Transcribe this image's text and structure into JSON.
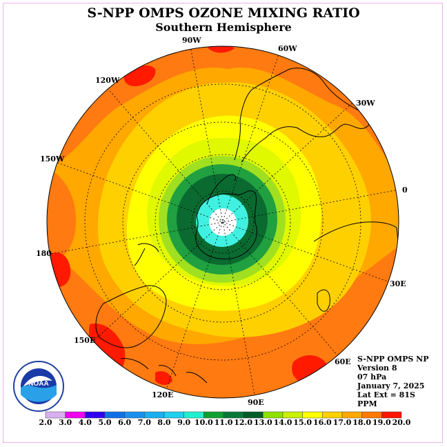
{
  "title": "S-NPP OMPS OZONE MIXING RATIO",
  "subtitle": "Southern Hemisphere",
  "longitude_labels": {
    "w90": "90W",
    "w60": "60W",
    "w30": "30W",
    "e0": "0",
    "e30": "30E",
    "e60": "60E",
    "e90": "90E",
    "e120": "120E",
    "e150": "150E",
    "e180": "180",
    "w150": "150W",
    "w120": "120W"
  },
  "info": {
    "line1": "S-NPP OMPS NP",
    "line2": "Version 8",
    "line3": "07 hPa",
    "line4": "January 7, 2025",
    "line5": "Lat Ext = 81S",
    "line6": "PPM"
  },
  "logo": {
    "text": "NOAA"
  },
  "colorbar": {
    "ticks": [
      "2.0",
      "3.0",
      "4.0",
      "5.0",
      "6.0",
      "7.0",
      "8.0",
      "9.0",
      "10.0",
      "11.0",
      "12.0",
      "13.0",
      "14.0",
      "15.0",
      "16.0",
      "17.0",
      "18.0",
      "19.0",
      "20.0"
    ],
    "colors": [
      "#b088f0",
      "#d8b0f0",
      "#f000f0",
      "#3000f0",
      "#1070e8",
      "#1890f0",
      "#18b0f0",
      "#20d0f0",
      "#20f0d0",
      "#10a030",
      "#087838",
      "#005c28",
      "#90e000",
      "#c8f000",
      "#ffff00",
      "#ffd000",
      "#ffa800",
      "#ff7800",
      "#ff1400",
      "#8c5a40"
    ]
  },
  "ozone_levels": {
    "center": "#ffffff",
    "ring_cyan": "#40f0e0",
    "ring_dark": "#0a6a30",
    "ring_green": "#20a040",
    "ring_lightgreen": "#a0e020",
    "ring_yellowgreen": "#e0f800",
    "ring_yellow": "#ffff00",
    "ring_gold": "#ffd000",
    "outer_orange": "#ffa800",
    "outer_darkorange": "#ff7a10",
    "hotspot_red": "#ff1a00"
  }
}
